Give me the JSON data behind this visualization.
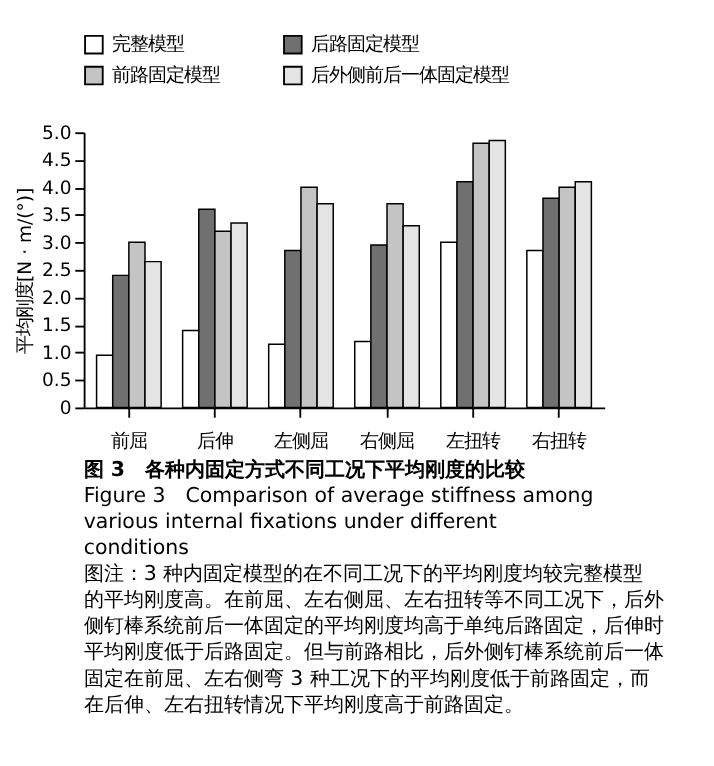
{
  "chart_data": {
    "type": "bar",
    "title": "图 3　各种内固定方式不同工况下平均刚度的比较",
    "subtitle": "Figure 3　Comparison of average stiffness among various internal fixations under different conditions",
    "annotations": [
      "图注：3 种内固定模型的在不同工况下的平均刚度均较完整模型的平均刚度高。在前屈、左右侧屈、左右扭转等不同工况下，后外侧钉棒系统前后一体固定的平均刚度均高于单纯后路固定，后伸时平均刚度低于后路固定。但与前路相比，后外侧钉棒系统前后一体固定在前屈、左右侧弯 3 种工况下的平均刚度低于前路固定，而在后伸、左右扭转情况下平均刚度高于前路固定。"
    ],
    "ylabel": "平均刚度[N · m/(°)]",
    "categories": [
      "前屈",
      "后伸",
      "左侧屈",
      "右侧屈",
      "左扭转",
      "右扭转"
    ],
    "series": [
      {
        "name": "完整模型",
        "color": "#ffffff",
        "values": [
          0.95,
          1.4,
          1.15,
          1.2,
          3.0,
          2.85
        ]
      },
      {
        "name": "后路固定模型",
        "color": "#707070",
        "values": [
          2.4,
          3.6,
          2.85,
          2.95,
          4.1,
          3.8
        ]
      },
      {
        "name": "前路固定模型",
        "color": "#c4c4c4",
        "values": [
          3.0,
          3.2,
          4.0,
          3.7,
          4.8,
          4.0
        ]
      },
      {
        "name": "后外侧前后一体固定模型",
        "color": "#e4e4e4",
        "values": [
          2.65,
          3.35,
          3.7,
          3.3,
          4.85,
          4.1
        ]
      }
    ],
    "ylim": [
      0,
      5
    ],
    "yticks": [
      0,
      0.5,
      {
        "value": 1,
        "label": "1.0"
      },
      1.5,
      {
        "value": 2,
        "label": "2.0"
      },
      2.5,
      {
        "value": 3,
        "label": "3.0"
      },
      3.5,
      {
        "value": 4,
        "label": "4.0"
      },
      4.5,
      {
        "value": 5,
        "label": "5.0"
      }
    ],
    "legend": "top",
    "grid": false
  }
}
